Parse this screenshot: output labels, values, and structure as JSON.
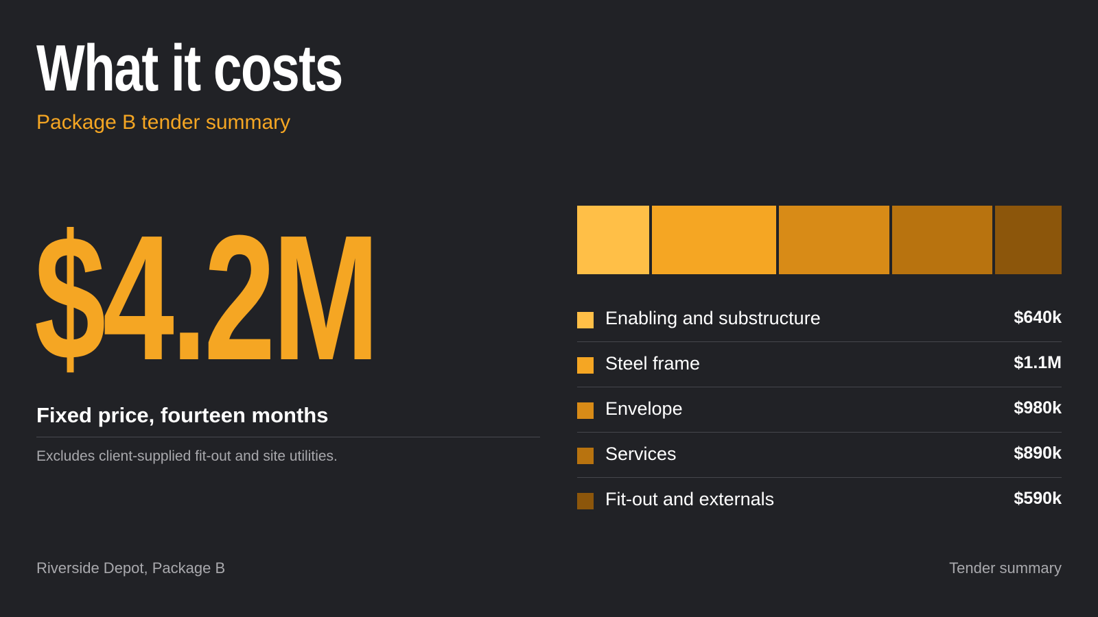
{
  "slide": {
    "title": "What it costs",
    "subtitle": "Package B tender summary",
    "total": "$4.2M",
    "terms": "Fixed price, fourteen months",
    "note": "Excludes client-supplied fit-out and site utilities."
  },
  "colors": {
    "background": "#212226",
    "accent": "#f5a623",
    "text": "#ffffff",
    "muted": "#a9a9ad"
  },
  "breakdown": [
    {
      "label": "Enabling and substructure",
      "value_label": "$640k",
      "value_k": 640,
      "color": "#ffbf47"
    },
    {
      "label": "Steel frame",
      "value_label": "$1.1M",
      "value_k": 1100,
      "color": "#f5a623"
    },
    {
      "label": "Envelope",
      "value_label": "$980k",
      "value_k": 980,
      "color": "#d88b17"
    },
    {
      "label": "Services",
      "value_label": "$890k",
      "value_k": 890,
      "color": "#b8730f"
    },
    {
      "label": "Fit-out and externals",
      "value_label": "$590k",
      "value_k": 590,
      "color": "#8c560b"
    }
  ],
  "footer": {
    "left": "Riverside Depot, Package B",
    "right": "Tender summary"
  }
}
